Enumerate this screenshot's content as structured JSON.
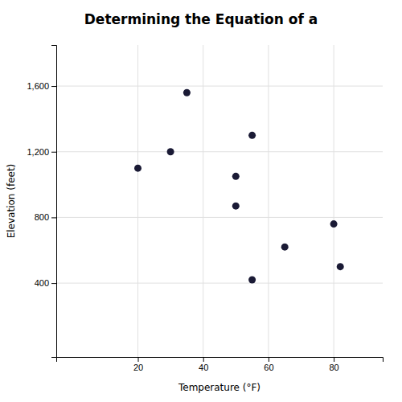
{
  "chart_data": {
    "type": "scatter",
    "title": "Determining the Equation of a",
    "xlabel": "Temperature (°F)",
    "ylabel": "Elevation (feet)",
    "x": [
      20,
      30,
      35,
      50,
      50,
      55,
      55,
      65,
      80,
      82
    ],
    "values": [
      1100,
      1200,
      1560,
      1050,
      870,
      1300,
      420,
      620,
      760,
      500
    ],
    "color": "#1a1a35",
    "xlim": [
      -5,
      95
    ],
    "ylim": [
      -50,
      1850
    ],
    "xticks": [
      20,
      40,
      60,
      80
    ],
    "yticks": [
      400,
      800,
      {
        "value": 1200,
        "label": "1,200"
      },
      {
        "value": 1600,
        "label": "1,600"
      }
    ],
    "grid": true
  }
}
